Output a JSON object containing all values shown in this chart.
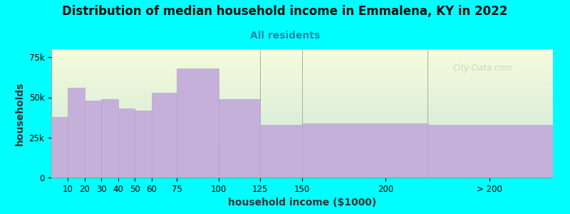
{
  "title": "Distribution of median household income in Emmalena, KY in 2022",
  "subtitle": "All residents",
  "xlabel": "household income ($1000)",
  "ylabel": "households",
  "background_color": "#00FFFF",
  "bar_color": "#c4b0d8",
  "bar_edge_color": "#b0a0c8",
  "categories": [
    "10",
    "20",
    "30",
    "40",
    "50",
    "60",
    "75",
    "100",
    "125",
    "150",
    "200",
    "> 200"
  ],
  "lefts": [
    0,
    10,
    20,
    30,
    40,
    50,
    60,
    75,
    100,
    125,
    150,
    225
  ],
  "widths": [
    10,
    10,
    10,
    10,
    10,
    10,
    15,
    25,
    25,
    25,
    75,
    75
  ],
  "values": [
    38000,
    56000,
    48000,
    49000,
    43000,
    42000,
    53000,
    68000,
    49000,
    33000,
    34000,
    33000
  ],
  "xtick_positions": [
    10,
    20,
    30,
    40,
    50,
    60,
    75,
    100,
    125,
    150,
    200,
    262
  ],
  "ylim": [
    0,
    80000
  ],
  "yticks": [
    0,
    25000,
    50000,
    75000
  ],
  "ytick_labels": [
    "0",
    "25k",
    "50k",
    "75k"
  ],
  "sep_lines": [
    125,
    150,
    225
  ],
  "title_fontsize": 12,
  "subtitle_fontsize": 10,
  "axis_label_fontsize": 10,
  "tick_fontsize": 8.5,
  "watermark_text": "City-Data.com"
}
